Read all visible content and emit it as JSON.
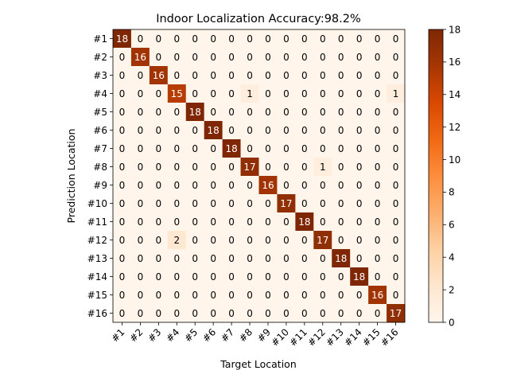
{
  "chart_data": {
    "type": "heatmap",
    "title": "Indoor Localization Accuracy:98.2%",
    "xlabel": "Target Location",
    "ylabel": "Prediction Location",
    "x_categories": [
      "#1",
      "#2",
      "#3",
      "#4",
      "#5",
      "#6",
      "#7",
      "#8",
      "#9",
      "#10",
      "#11",
      "#12",
      "#13",
      "#14",
      "#15",
      "#16"
    ],
    "y_categories": [
      "#1",
      "#2",
      "#3",
      "#4",
      "#5",
      "#6",
      "#7",
      "#8",
      "#9",
      "#10",
      "#11",
      "#12",
      "#13",
      "#14",
      "#15",
      "#16"
    ],
    "values": [
      [
        18,
        0,
        0,
        0,
        0,
        0,
        0,
        0,
        0,
        0,
        0,
        0,
        0,
        0,
        0,
        0
      ],
      [
        0,
        16,
        0,
        0,
        0,
        0,
        0,
        0,
        0,
        0,
        0,
        0,
        0,
        0,
        0,
        0
      ],
      [
        0,
        0,
        16,
        0,
        0,
        0,
        0,
        0,
        0,
        0,
        0,
        0,
        0,
        0,
        0,
        0
      ],
      [
        0,
        0,
        0,
        15,
        0,
        0,
        0,
        1,
        0,
        0,
        0,
        0,
        0,
        0,
        0,
        1
      ],
      [
        0,
        0,
        0,
        0,
        18,
        0,
        0,
        0,
        0,
        0,
        0,
        0,
        0,
        0,
        0,
        0
      ],
      [
        0,
        0,
        0,
        0,
        0,
        18,
        0,
        0,
        0,
        0,
        0,
        0,
        0,
        0,
        0,
        0
      ],
      [
        0,
        0,
        0,
        0,
        0,
        0,
        18,
        0,
        0,
        0,
        0,
        0,
        0,
        0,
        0,
        0
      ],
      [
        0,
        0,
        0,
        0,
        0,
        0,
        0,
        17,
        0,
        0,
        0,
        1,
        0,
        0,
        0,
        0
      ],
      [
        0,
        0,
        0,
        0,
        0,
        0,
        0,
        0,
        16,
        0,
        0,
        0,
        0,
        0,
        0,
        0
      ],
      [
        0,
        0,
        0,
        0,
        0,
        0,
        0,
        0,
        0,
        17,
        0,
        0,
        0,
        0,
        0,
        0
      ],
      [
        0,
        0,
        0,
        0,
        0,
        0,
        0,
        0,
        0,
        0,
        18,
        0,
        0,
        0,
        0,
        0
      ],
      [
        0,
        0,
        0,
        2,
        0,
        0,
        0,
        0,
        0,
        0,
        0,
        17,
        0,
        0,
        0,
        0
      ],
      [
        0,
        0,
        0,
        0,
        0,
        0,
        0,
        0,
        0,
        0,
        0,
        0,
        18,
        0,
        0,
        0
      ],
      [
        0,
        0,
        0,
        0,
        0,
        0,
        0,
        0,
        0,
        0,
        0,
        0,
        0,
        18,
        0,
        0
      ],
      [
        0,
        0,
        0,
        0,
        0,
        0,
        0,
        0,
        0,
        0,
        0,
        0,
        0,
        0,
        16,
        0
      ],
      [
        0,
        0,
        0,
        0,
        0,
        0,
        0,
        0,
        0,
        0,
        0,
        0,
        0,
        0,
        0,
        17
      ]
    ],
    "colormap": "Oranges-Brown",
    "color_low": "#fff5eb",
    "color_high": "#7f2704",
    "colorbar_range": [
      0,
      18
    ],
    "colorbar_ticks": [
      0,
      2,
      4,
      6,
      8,
      10,
      12,
      14,
      16,
      18
    ],
    "x_tick_rotation_deg": 45,
    "grid": false
  }
}
